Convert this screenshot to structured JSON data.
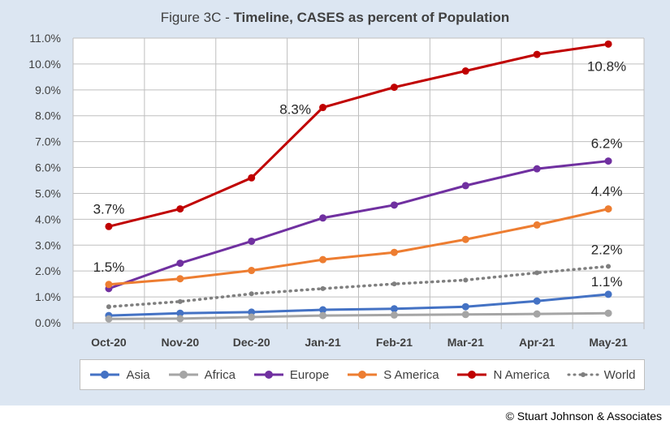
{
  "title_prefix": "Figure 3C - ",
  "title_main": "Timeline, CASES as percent of Population",
  "copyright": "© Stuart Johnson & Associates",
  "colors": {
    "Asia": "#4472c4",
    "Africa": "#a5a5a5",
    "Europe": "#7030a0",
    "S America": "#ed7d31",
    "N America": "#c00000",
    "World": "#7f7f7f"
  },
  "chart_data": {
    "type": "line",
    "title": "Figure 3C - Timeline, CASES as percent of Population",
    "categories": [
      "Oct-20",
      "Nov-20",
      "Dec-20",
      "Jan-21",
      "Feb-21",
      "Mar-21",
      "Apr-21",
      "May-21"
    ],
    "ylim": [
      0,
      11
    ],
    "yticks": [
      "0.0%",
      "1.0%",
      "2.0%",
      "3.0%",
      "4.0%",
      "5.0%",
      "6.0%",
      "7.0%",
      "8.0%",
      "9.0%",
      "10.0%",
      "11.0%"
    ],
    "grid": true,
    "legend": "bottom",
    "series": [
      {
        "name": "Asia",
        "values": [
          0.28,
          0.37,
          0.41,
          0.5,
          0.54,
          0.62,
          0.84,
          1.1
        ],
        "dashed": false
      },
      {
        "name": "Africa",
        "values": [
          0.15,
          0.16,
          0.22,
          0.28,
          0.3,
          0.32,
          0.34,
          0.37
        ],
        "dashed": false
      },
      {
        "name": "Europe",
        "values": [
          1.32,
          2.3,
          3.15,
          4.05,
          4.55,
          5.3,
          5.95,
          6.25
        ],
        "dashed": false
      },
      {
        "name": "S America",
        "values": [
          1.48,
          1.7,
          2.02,
          2.44,
          2.72,
          3.22,
          3.78,
          4.4
        ],
        "dashed": false
      },
      {
        "name": "N America",
        "values": [
          3.72,
          4.4,
          5.6,
          8.32,
          9.1,
          9.73,
          10.37,
          10.77
        ],
        "dashed": false
      },
      {
        "name": "World",
        "values": [
          0.62,
          0.82,
          1.12,
          1.32,
          1.5,
          1.65,
          1.93,
          2.18
        ],
        "dashed": true
      }
    ],
    "annotations": [
      {
        "series": "N America",
        "index": 0,
        "text": "3.7%"
      },
      {
        "series": "N America",
        "index": 3,
        "text": "8.3%"
      },
      {
        "series": "N America",
        "index": 7,
        "text": "10.8%"
      },
      {
        "series": "Europe",
        "index": 7,
        "text": "6.2%"
      },
      {
        "series": "S America",
        "index": 0,
        "text": "1.5%"
      },
      {
        "series": "S America",
        "index": 7,
        "text": "4.4%"
      },
      {
        "series": "World",
        "index": 7,
        "text": "2.2%"
      },
      {
        "series": "Asia",
        "index": 7,
        "text": "1.1%"
      }
    ]
  }
}
